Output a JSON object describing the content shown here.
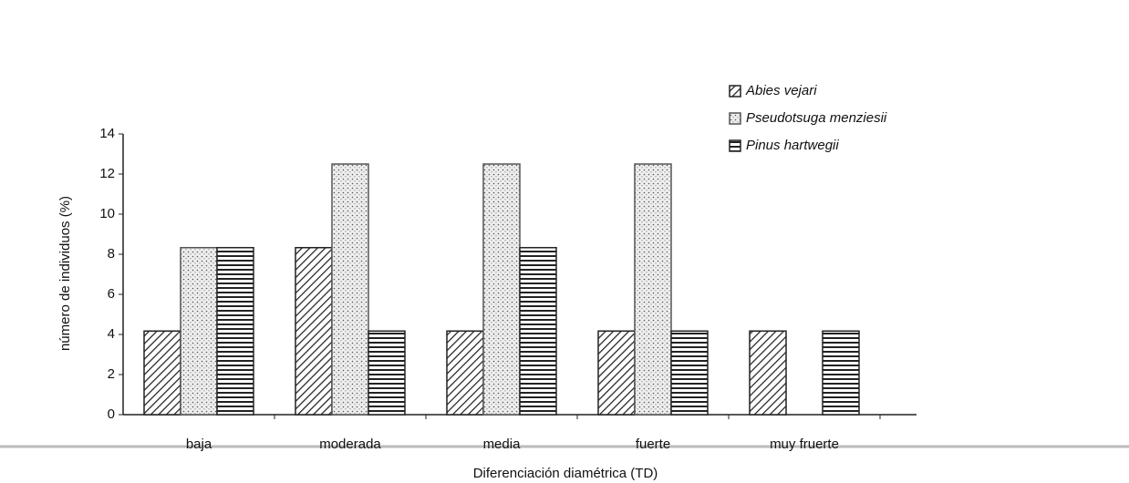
{
  "chart_data": {
    "type": "bar",
    "xlabel": "Diferenciación diamétrica (TD)",
    "ylabel": "número de individuos (%)",
    "categories": [
      "baja",
      "moderada",
      "media",
      "fuerte",
      "muy fruerte"
    ],
    "series": [
      {
        "name": "Abies vejari",
        "color": "#222222",
        "pattern": "diagonal",
        "values": [
          4.17,
          8.33,
          4.17,
          4.17,
          4.17
        ]
      },
      {
        "name": "Pseudotsuga menziesii",
        "color": "#555555",
        "pattern": "dots",
        "values": [
          8.33,
          12.5,
          12.5,
          12.5,
          0
        ]
      },
      {
        "name": "Pinus hartwegii",
        "color": "#222222",
        "pattern": "horizontal",
        "values": [
          8.33,
          4.17,
          8.33,
          4.17,
          4.17
        ]
      }
    ],
    "ylim": [
      0,
      14
    ],
    "yticks": [
      0,
      2,
      4,
      6,
      8,
      10,
      12,
      14
    ],
    "legend": "upper right"
  }
}
